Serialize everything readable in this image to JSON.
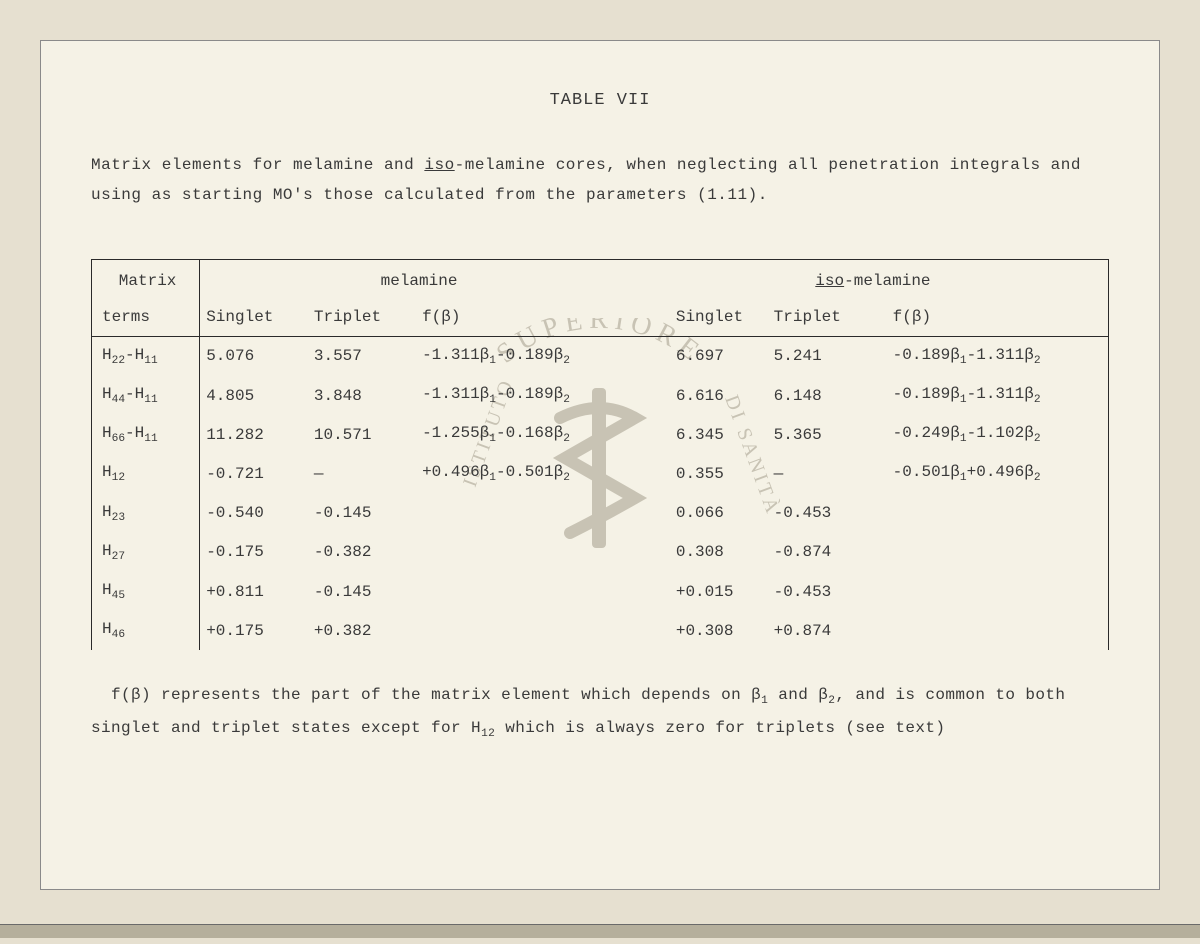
{
  "title": "TABLE VII",
  "caption_parts": {
    "a": "Matrix elements for melamine and ",
    "iso": "iso",
    "b": "-melamine cores, when neglecting all penetration integrals and using as starting MO's those calculated from the parameters (1.11)."
  },
  "headers": {
    "matrix": "Matrix",
    "terms": "terms",
    "melamine": "melamine",
    "iso_label": "iso",
    "iso_suffix": "-melamine",
    "singlet": "Singlet",
    "triplet": "Triplet",
    "fbeta": "f(β)"
  },
  "rows": [
    {
      "term": "H<sub>22</sub>-H<sub>11</sub>",
      "m_s": "5.076",
      "m_t": "3.557",
      "m_f": "-1.311β<sub>1</sub>-0.189β<sub>2</sub>",
      "i_s": "6.697",
      "i_t": "5.241",
      "i_f": "-0.189β<sub>1</sub>-1.311β<sub>2</sub>"
    },
    {
      "term": "H<sub>44</sub>-H<sub>11</sub>",
      "m_s": "4.805",
      "m_t": "3.848",
      "m_f": "-1.311β<sub>1</sub>-0.189β<sub>2</sub>",
      "i_s": "6.616",
      "i_t": "6.148",
      "i_f": "-0.189β<sub>1</sub>-1.311β<sub>2</sub>"
    },
    {
      "term": "H<sub>66</sub>-H<sub>11</sub>",
      "m_s": "11.282",
      "m_t": "10.571",
      "m_f": "-1.255β<sub>1</sub>-0.168β<sub>2</sub>",
      "i_s": "6.345",
      "i_t": "5.365",
      "i_f": "-0.249β<sub>1</sub>-1.102β<sub>2</sub>"
    },
    {
      "term": "H<sub>12</sub>",
      "m_s": "-0.721",
      "m_t": "—",
      "m_f": "+0.496β<sub>1</sub>-0.501β<sub>2</sub>",
      "i_s": "0.355",
      "i_t": "—",
      "i_f": "-0.501β<sub>1</sub>+0.496β<sub>2</sub>"
    },
    {
      "term": "H<sub>23</sub>",
      "m_s": "-0.540",
      "m_t": "-0.145",
      "m_f": "",
      "i_s": "0.066",
      "i_t": "-0.453",
      "i_f": ""
    },
    {
      "term": "H<sub>27</sub>",
      "m_s": "-0.175",
      "m_t": "-0.382",
      "m_f": "",
      "i_s": "0.308",
      "i_t": "-0.874",
      "i_f": ""
    },
    {
      "term": "H<sub>45</sub>",
      "m_s": "+0.811",
      "m_t": "-0.145",
      "m_f": "",
      "i_s": "+0.015",
      "i_t": "-0.453",
      "i_f": ""
    },
    {
      "term": "H<sub>46</sub>",
      "m_s": "+0.175",
      "m_t": "+0.382",
      "m_f": "",
      "i_s": "+0.308",
      "i_t": "+0.874",
      "i_f": ""
    }
  ],
  "footnote_parts": {
    "a": "f(β) represents the part of the matrix element which depends on β",
    "s1": "1",
    "b": " and β",
    "s2": "2",
    "c": ", and is common to both singlet and triplet states except for H",
    "s12": "12",
    "d": " which is always zero for triplets (see text)"
  },
  "watermark": {
    "top": "SUPERIORE",
    "left": "ISTITUTO",
    "right": "DI SANITÀ",
    "color": "#c8c3b4"
  },
  "style": {
    "page_bg": "#f5f2e6",
    "body_bg": "#e6e0d0",
    "text_color": "#3a3a3a",
    "rule_color": "#2a2a2a",
    "font": "Courier New",
    "base_fontsize": 16
  }
}
